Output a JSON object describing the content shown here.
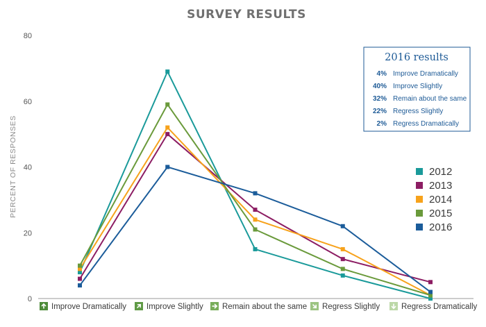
{
  "chart_data": {
    "type": "line",
    "title": "SURVEY RESULTS",
    "ylabel": "PERCENT OF RESPONSES",
    "xlabel": "",
    "ylim": [
      0,
      80
    ],
    "yticks": [
      "0",
      "20",
      "40",
      "60",
      "80"
    ],
    "categories": [
      "Improve Dramatically",
      "Improve Slightly",
      "Remain about the same",
      "Regress Slightly",
      "Regress Dramatically"
    ],
    "category_icons": [
      {
        "glyph": "arrow-up-icon",
        "color": "#4e8c3a"
      },
      {
        "glyph": "arrow-up-right-icon",
        "color": "#5f9a45"
      },
      {
        "glyph": "arrow-right-icon",
        "color": "#78ad5a"
      },
      {
        "glyph": "arrow-down-right-icon",
        "color": "#9cc482"
      },
      {
        "glyph": "arrow-down-icon",
        "color": "#bcd8a8"
      }
    ],
    "series": [
      {
        "name": "2012",
        "color": "#1a9a9a",
        "values": [
          8,
          69,
          15,
          7,
          0
        ]
      },
      {
        "name": "2013",
        "color": "#8c1d63",
        "values": [
          6,
          50,
          27,
          12,
          5
        ]
      },
      {
        "name": "2014",
        "color": "#f7a21b",
        "values": [
          9,
          52,
          24,
          15,
          1
        ]
      },
      {
        "name": "2015",
        "color": "#6a9a3b",
        "values": [
          10,
          59,
          21,
          9,
          1
        ]
      },
      {
        "name": "2016",
        "color": "#1b5c9a",
        "values": [
          4,
          40,
          32,
          22,
          2
        ]
      }
    ],
    "legend_position": "right",
    "grid": false
  },
  "results_box": {
    "title": "2016 results",
    "rows": [
      {
        "pct": "4%",
        "label": "Improve Dramatically"
      },
      {
        "pct": "40%",
        "label": "Improve Slightly"
      },
      {
        "pct": "32%",
        "label": "Remain about the same"
      },
      {
        "pct": "22%",
        "label": "Regress Slightly"
      },
      {
        "pct": "2%",
        "label": "Regress Dramatically"
      }
    ]
  }
}
